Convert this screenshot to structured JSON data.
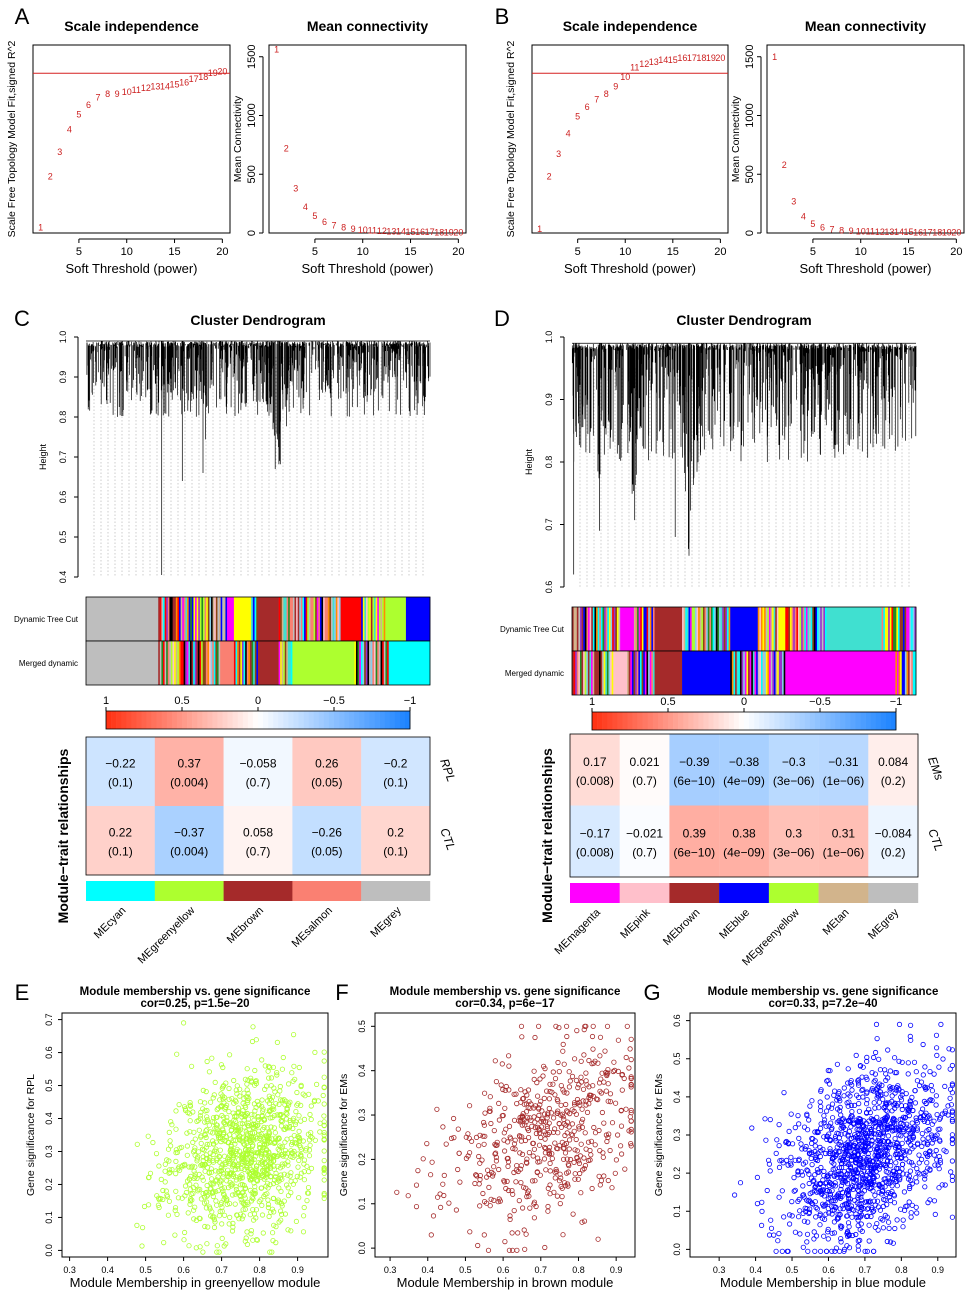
{
  "panel_labels": [
    "A",
    "B",
    "C",
    "D",
    "E",
    "F",
    "G"
  ],
  "chart_data": [
    {
      "id": "A1",
      "type": "scatter",
      "title": "Scale independence",
      "xlabel": "Soft Threshold (power)",
      "ylabel": "Scale Free Topology Model Fit,signed R^2",
      "xlim": [
        1,
        20
      ],
      "ylim": [
        0,
        1
      ],
      "x_ticks": [
        5,
        10,
        15,
        20
      ],
      "threshold_line": 0.85,
      "x": [
        1,
        2,
        3,
        4,
        5,
        6,
        7,
        8,
        9,
        10,
        11,
        12,
        13,
        14,
        15,
        16,
        17,
        18,
        19,
        20
      ],
      "y": [
        0.03,
        0.3,
        0.43,
        0.55,
        0.63,
        0.68,
        0.72,
        0.74,
        0.74,
        0.75,
        0.76,
        0.77,
        0.78,
        0.78,
        0.79,
        0.8,
        0.82,
        0.83,
        0.85,
        0.86
      ],
      "point_labels": [
        "1",
        "2",
        "3",
        "4",
        "5",
        "6",
        "7",
        "8",
        "9",
        "10",
        "11",
        "12",
        "13",
        "14",
        "15",
        "16",
        "17",
        "18",
        "19",
        "20"
      ]
    },
    {
      "id": "A2",
      "type": "scatter",
      "title": "Mean connectivity",
      "xlabel": "Soft Threshold (power)",
      "ylabel": "Mean Connectivity",
      "xlim": [
        1,
        20
      ],
      "ylim": [
        0,
        1600
      ],
      "x_ticks": [
        5,
        10,
        15,
        20
      ],
      "y_ticks": [
        0,
        500,
        1000,
        1500
      ],
      "x": [
        1,
        2,
        3,
        4,
        5,
        6,
        7,
        8,
        9,
        10,
        11,
        12,
        13,
        14,
        15,
        16,
        17,
        18,
        19,
        20
      ],
      "y": [
        1560,
        720,
        380,
        220,
        145,
        95,
        65,
        45,
        32,
        25,
        20,
        16,
        13,
        11,
        9,
        8,
        7,
        6,
        5,
        4
      ],
      "point_labels": [
        "1",
        "2",
        "3",
        "4",
        "5",
        "6",
        "7",
        "8",
        "9",
        "10",
        "11",
        "12",
        "13",
        "14",
        "15",
        "16",
        "17",
        "18",
        "19",
        "20"
      ]
    },
    {
      "id": "B1",
      "type": "scatter",
      "title": "Scale independence",
      "xlabel": "Soft Threshold (power)",
      "ylabel": "Scale Free Topology Model Fit,signed R^2",
      "xlim": [
        1,
        20
      ],
      "ylim": [
        0,
        1
      ],
      "x_ticks": [
        5,
        10,
        15,
        20
      ],
      "threshold_line": 0.85,
      "x": [
        1,
        2,
        3,
        4,
        5,
        6,
        7,
        8,
        9,
        10,
        11,
        12,
        13,
        14,
        15,
        16,
        17,
        18,
        19,
        20
      ],
      "y": [
        0.02,
        0.3,
        0.42,
        0.53,
        0.62,
        0.67,
        0.71,
        0.74,
        0.78,
        0.83,
        0.88,
        0.9,
        0.91,
        0.92,
        0.92,
        0.93,
        0.93,
        0.93,
        0.93,
        0.93
      ],
      "point_labels": [
        "1",
        "2",
        "3",
        "4",
        "5",
        "6",
        "7",
        "8",
        "9",
        "10",
        "11",
        "12",
        "13",
        "14",
        "15",
        "16",
        "17",
        "18",
        "19",
        "20"
      ]
    },
    {
      "id": "B2",
      "type": "scatter",
      "title": "Mean connectivity",
      "xlabel": "Soft Threshold (power)",
      "ylabel": "Mean Connectivity",
      "xlim": [
        1,
        20
      ],
      "ylim": [
        0,
        1600
      ],
      "x_ticks": [
        5,
        10,
        15,
        20
      ],
      "y_ticks": [
        0,
        500,
        1000,
        1500
      ],
      "x": [
        1,
        2,
        3,
        4,
        5,
        6,
        7,
        8,
        9,
        10,
        11,
        12,
        13,
        14,
        15,
        16,
        17,
        18,
        19,
        20
      ],
      "y": [
        1500,
        580,
        270,
        140,
        75,
        45,
        30,
        22,
        17,
        14,
        12,
        10,
        9,
        8,
        7,
        6,
        5,
        5,
        4,
        4
      ],
      "point_labels": [
        "1",
        "2",
        "3",
        "4",
        "5",
        "6",
        "7",
        "8",
        "9",
        "10",
        "11",
        "12",
        "13",
        "14",
        "15",
        "16",
        "17",
        "18",
        "19",
        "20"
      ]
    },
    {
      "id": "C",
      "type": "heatmap",
      "dendrogram_title": "Cluster Dendrogram",
      "height_label": "Height",
      "height_ticks": [
        0.4,
        0.5,
        0.6,
        0.7,
        0.8,
        0.9,
        1.0
      ],
      "height_tick_labels": [
        "0.4",
        "0.5",
        "0.6",
        "0.7",
        "0.8",
        "0.9",
        "1.0"
      ],
      "color_rows": [
        "Dynamic Tree Cut",
        "Merged dynamic"
      ],
      "legend_ticks": [
        "1",
        "0.5",
        "0",
        "−0.5",
        "−1"
      ],
      "heat_title": "Module−trait relationships",
      "traits": [
        "RPL",
        "CTL"
      ],
      "modules": [
        "MEcyan",
        "MEgreenyellow",
        "MEbrown",
        "MEsalmon",
        "MEgrey"
      ],
      "module_colors": [
        "#00ffff",
        "#adff2f",
        "#a52a2a",
        "#fa8072",
        "#bebebe"
      ],
      "values": [
        [
          -0.22,
          0.37,
          -0.058,
          0.26,
          -0.2
        ],
        [
          0.22,
          -0.37,
          0.058,
          -0.26,
          0.2
        ]
      ],
      "value_labels": [
        [
          "−0.22",
          "0.37",
          "−0.058",
          "0.26",
          "−0.2"
        ],
        [
          "0.22",
          "−0.37",
          "0.058",
          "−0.26",
          "0.2"
        ]
      ],
      "pvalues": [
        [
          "(0.1)",
          "(0.004)",
          "(0.7)",
          "(0.05)",
          "(0.1)"
        ],
        [
          "(0.1)",
          "(0.004)",
          "(0.7)",
          "(0.05)",
          "(0.1)"
        ]
      ]
    },
    {
      "id": "D",
      "type": "heatmap",
      "dendrogram_title": "Cluster Dendrogram",
      "height_label": "Height",
      "height_ticks": [
        0.6,
        0.7,
        0.8,
        0.9,
        1.0
      ],
      "height_tick_labels": [
        "0.6",
        "0.7",
        "0.8",
        "0.9",
        "1.0"
      ],
      "color_rows": [
        "Dynamic Tree Cut",
        "Merged dynamic"
      ],
      "legend_ticks": [
        "1",
        "0.5",
        "0",
        "−0.5",
        "−1"
      ],
      "heat_title": "Module−trait relationships",
      "traits": [
        "EMs",
        "CTL"
      ],
      "modules": [
        "MEmagenta",
        "MEpink",
        "MEbrown",
        "MEblue",
        "MEgreenyellow",
        "MEtan",
        "MEgrey"
      ],
      "module_colors": [
        "#ff00ff",
        "#ffc0cb",
        "#a52a2a",
        "#0000ff",
        "#adff2f",
        "#d2b48c",
        "#bebebe"
      ],
      "values": [
        [
          0.17,
          0.021,
          -0.39,
          -0.38,
          -0.3,
          -0.31,
          0.084
        ],
        [
          -0.17,
          -0.021,
          0.39,
          0.38,
          0.3,
          0.31,
          -0.084
        ]
      ],
      "value_labels": [
        [
          "0.17",
          "0.021",
          "−0.39",
          "−0.38",
          "−0.3",
          "−0.31",
          "0.084"
        ],
        [
          "−0.17",
          "−0.021",
          "0.39",
          "0.38",
          "0.3",
          "0.31",
          "−0.084"
        ]
      ],
      "pvalues": [
        [
          "(0.008)",
          "(0.7)",
          "(6e−10)",
          "(4e−09)",
          "(3e−06)",
          "(1e−06)",
          "(0.2)"
        ],
        [
          "(0.008)",
          "(0.7)",
          "(6e−10)",
          "(4e−09)",
          "(3e−06)",
          "(1e−06)",
          "(0.2)"
        ]
      ]
    },
    {
      "id": "E",
      "type": "scatter",
      "title": "Module membership vs. gene significance",
      "subtitle": "cor=0.25, p=1.5e−20",
      "xlabel": "Module Membership in greenyellow module",
      "ylabel": "Gene significance for  RPL",
      "xlim": [
        0.28,
        0.98
      ],
      "ylim": [
        -0.02,
        0.72
      ],
      "x_ticks": [
        0.3,
        0.4,
        0.5,
        0.6,
        0.7,
        0.8,
        0.9
      ],
      "y_ticks": [
        0.0,
        0.1,
        0.2,
        0.3,
        0.4,
        0.5,
        0.6,
        0.7
      ],
      "color": "#adff2f",
      "n_points": 1100,
      "x_center": 0.76,
      "x_spread": 0.1,
      "y_center": 0.3,
      "y_spread": 0.12,
      "slope": 0.3,
      "seed": 11
    },
    {
      "id": "F",
      "type": "scatter",
      "title": "Module membership vs. gene significance",
      "subtitle": "cor=0.34, p=6e−17",
      "xlabel": "Module Membership in brown module",
      "ylabel": "Gene significance for  EMs",
      "xlim": [
        0.26,
        0.95
      ],
      "ylim": [
        -0.02,
        0.53
      ],
      "x_ticks": [
        0.3,
        0.4,
        0.5,
        0.6,
        0.7,
        0.8,
        0.9
      ],
      "y_ticks": [
        0.0,
        0.1,
        0.2,
        0.3,
        0.4,
        0.5
      ],
      "color": "#a52a2a",
      "n_points": 560,
      "x_center": 0.7,
      "x_spread": 0.13,
      "y_center": 0.25,
      "y_spread": 0.1,
      "slope": 0.3,
      "seed": 23
    },
    {
      "id": "G",
      "type": "scatter",
      "title": "Module membership vs. gene significance",
      "subtitle": "cor=0.33, p=7.2e−40",
      "xlabel": "Module Membership in blue module",
      "ylabel": "Gene significance for  EMs",
      "xlim": [
        0.22,
        0.95
      ],
      "ylim": [
        -0.02,
        0.62
      ],
      "x_ticks": [
        0.3,
        0.4,
        0.5,
        0.6,
        0.7,
        0.8,
        0.9
      ],
      "y_ticks": [
        0.0,
        0.1,
        0.2,
        0.3,
        0.4,
        0.5,
        0.6
      ],
      "color": "#0000ff",
      "n_points": 1300,
      "x_center": 0.7,
      "x_spread": 0.11,
      "y_center": 0.25,
      "y_spread": 0.11,
      "slope": 0.35,
      "seed": 37
    }
  ]
}
